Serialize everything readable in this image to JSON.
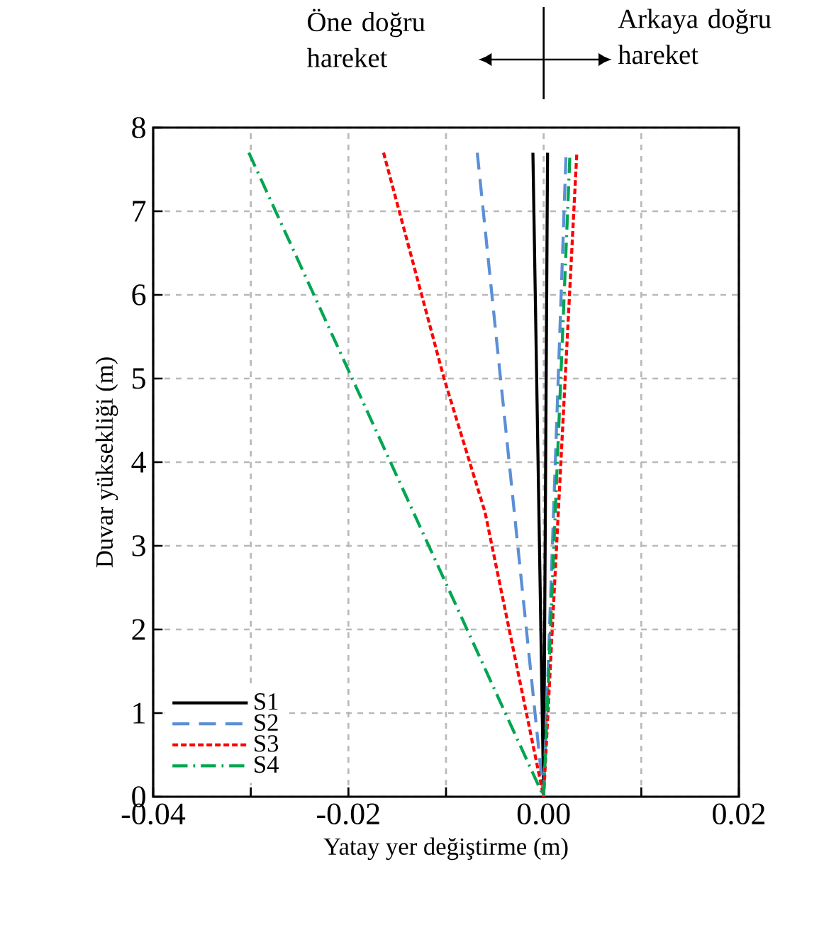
{
  "chart_data": {
    "type": "line",
    "xlabel": "Yatay yer değiştirme (m)",
    "ylabel": "Duvar yüksekliği (m)",
    "annotations": [
      "Öne doğru hareket",
      "Arkaya doğru hareket"
    ],
    "series": [
      {
        "name": "S1",
        "color": "#000000",
        "line_style": "solid",
        "x": [
          -0.0011,
          0,
          0.0004
        ],
        "values": [
          7.7,
          0,
          7.7
        ]
      },
      {
        "name": "S2",
        "color": "#5b8fd6",
        "line_style": "dashed",
        "x": [
          -0.0068,
          0,
          0.0023
        ],
        "values": [
          7.7,
          0,
          7.7
        ]
      },
      {
        "name": "S3",
        "color": "#ff0000",
        "line_style": "dotted",
        "x": [
          -0.0164,
          -0.0102,
          -0.006,
          0,
          0.0034
        ],
        "values": [
          7.7,
          5.0,
          3.4,
          0,
          7.7
        ]
      },
      {
        "name": "S4",
        "color": "#00a651",
        "line_style": "dashdot",
        "x": [
          -0.0302,
          0,
          0.0027
        ],
        "values": [
          7.7,
          0,
          7.7
        ]
      }
    ],
    "xlim": [
      -0.04,
      0.02
    ],
    "xticks": [
      {
        "value": -0.04,
        "label": "-0.04"
      },
      {
        "value": -0.03,
        "label": null
      },
      {
        "value": -0.02,
        "label": "-0.02"
      },
      {
        "value": -0.01,
        "label": null
      },
      {
        "value": 0,
        "label": "0.00"
      },
      {
        "value": 0.01,
        "label": null
      },
      {
        "value": 0.02,
        "label": "0.02"
      }
    ],
    "ylim": [
      0,
      8
    ],
    "yticks": [
      0,
      1,
      2,
      3,
      4,
      5,
      6,
      7,
      8
    ],
    "grid": true,
    "legend": "bottom left",
    "marker": "none"
  }
}
